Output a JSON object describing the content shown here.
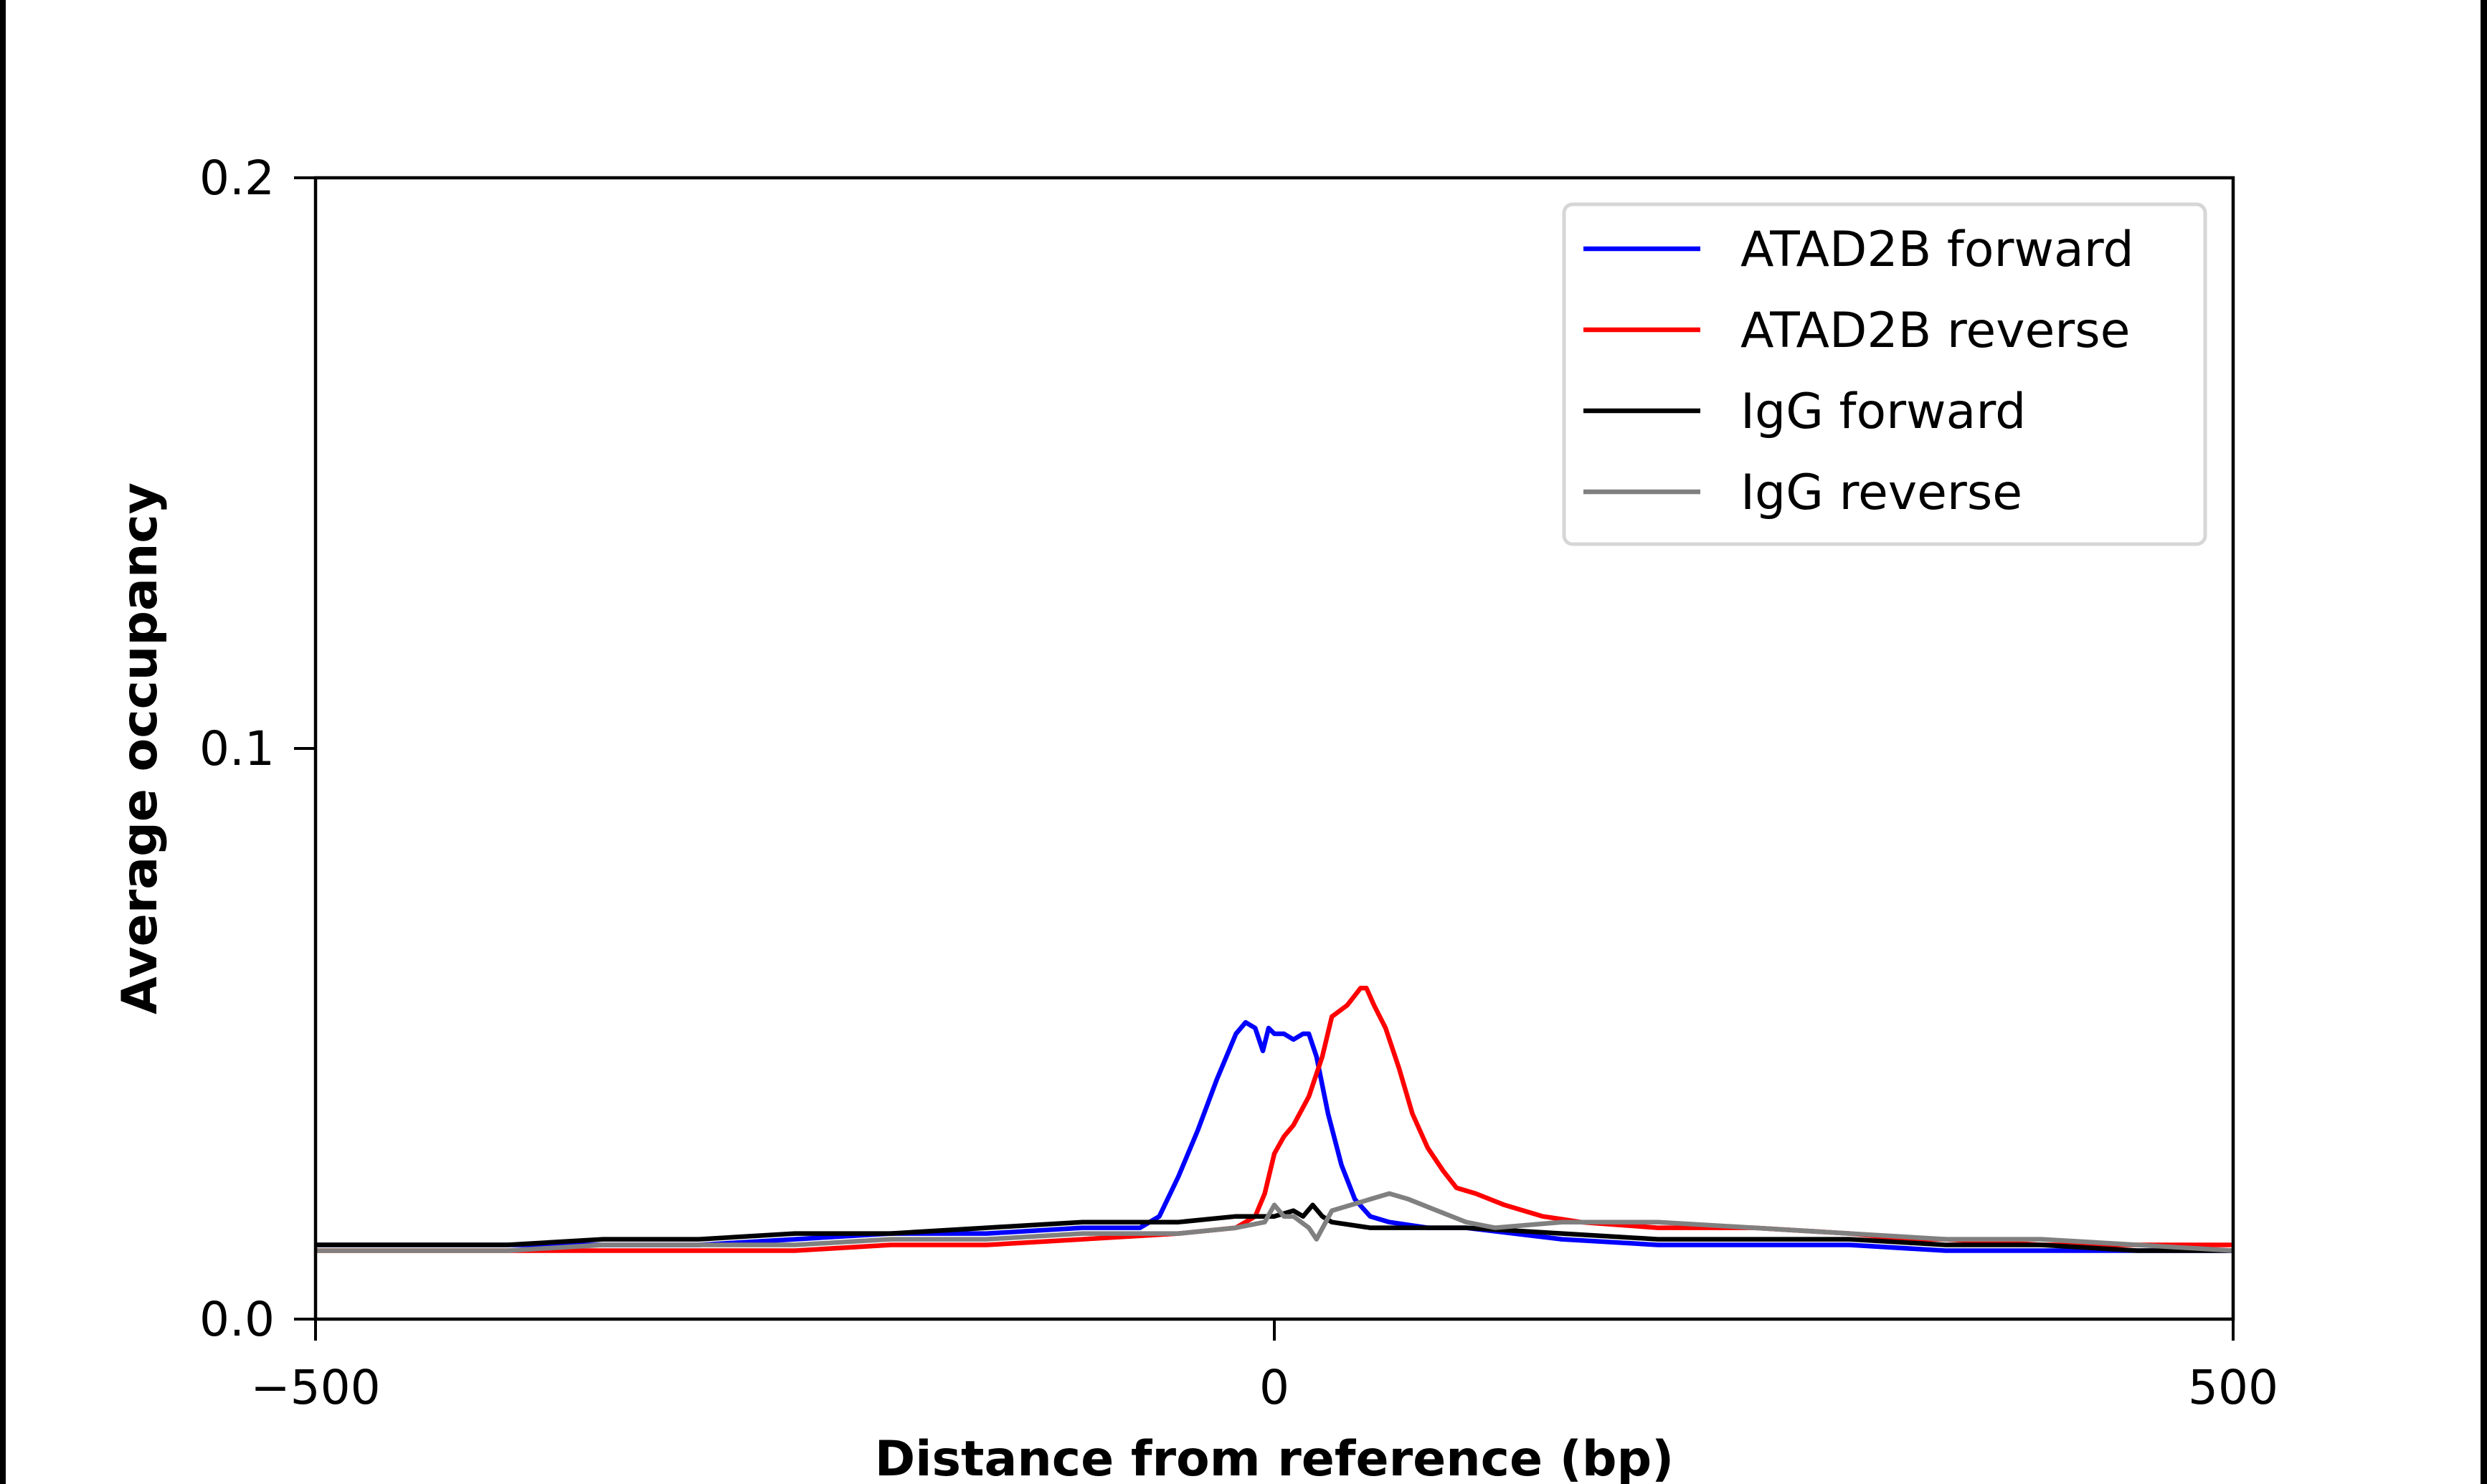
{
  "chart_data": {
    "type": "line",
    "title": "",
    "xlabel": "Distance from reference (bp)",
    "ylabel": "Average occupancy",
    "xlim": [
      -500,
      500
    ],
    "ylim": [
      0,
      0.2
    ],
    "xticks": [
      -500,
      0,
      500
    ],
    "xtick_labels": [
      "−500",
      "0",
      "500"
    ],
    "yticks": [
      0,
      0.1,
      0.2
    ],
    "ytick_labels": [
      "0.0",
      "0.1",
      "0.2"
    ],
    "grid": false,
    "legend_position": "top-right",
    "series": [
      {
        "name": "ATAD2B forward",
        "color": "#0000ff",
        "points": [
          [
            -500,
            0.013
          ],
          [
            -450,
            0.013
          ],
          [
            -400,
            0.013
          ],
          [
            -350,
            0.013
          ],
          [
            -300,
            0.013
          ],
          [
            -250,
            0.014
          ],
          [
            -200,
            0.015
          ],
          [
            -150,
            0.015
          ],
          [
            -100,
            0.016
          ],
          [
            -70,
            0.016
          ],
          [
            -60,
            0.018
          ],
          [
            -50,
            0.025
          ],
          [
            -40,
            0.033
          ],
          [
            -30,
            0.042
          ],
          [
            -20,
            0.05
          ],
          [
            -15,
            0.052
          ],
          [
            -10,
            0.051
          ],
          [
            -6,
            0.047
          ],
          [
            -3,
            0.051
          ],
          [
            0,
            0.05
          ],
          [
            5,
            0.05
          ],
          [
            10,
            0.049
          ],
          [
            15,
            0.05
          ],
          [
            18,
            0.05
          ],
          [
            22,
            0.046
          ],
          [
            28,
            0.036
          ],
          [
            35,
            0.027
          ],
          [
            42,
            0.021
          ],
          [
            50,
            0.018
          ],
          [
            60,
            0.017
          ],
          [
            80,
            0.016
          ],
          [
            100,
            0.016
          ],
          [
            150,
            0.014
          ],
          [
            200,
            0.013
          ],
          [
            250,
            0.013
          ],
          [
            300,
            0.013
          ],
          [
            350,
            0.012
          ],
          [
            400,
            0.012
          ],
          [
            450,
            0.012
          ],
          [
            500,
            0.012
          ]
        ]
      },
      {
        "name": "ATAD2B reverse",
        "color": "#ff0000",
        "points": [
          [
            -500,
            0.012
          ],
          [
            -450,
            0.012
          ],
          [
            -400,
            0.012
          ],
          [
            -350,
            0.012
          ],
          [
            -300,
            0.012
          ],
          [
            -250,
            0.012
          ],
          [
            -200,
            0.013
          ],
          [
            -150,
            0.013
          ],
          [
            -100,
            0.014
          ],
          [
            -50,
            0.015
          ],
          [
            -20,
            0.016
          ],
          [
            -10,
            0.018
          ],
          [
            -5,
            0.022
          ],
          [
            0,
            0.029
          ],
          [
            5,
            0.032
          ],
          [
            10,
            0.034
          ],
          [
            18,
            0.039
          ],
          [
            25,
            0.046
          ],
          [
            30,
            0.053
          ],
          [
            38,
            0.055
          ],
          [
            45,
            0.058
          ],
          [
            48,
            0.058
          ],
          [
            52,
            0.055
          ],
          [
            58,
            0.051
          ],
          [
            65,
            0.044
          ],
          [
            72,
            0.036
          ],
          [
            80,
            0.03
          ],
          [
            88,
            0.026
          ],
          [
            95,
            0.023
          ],
          [
            105,
            0.022
          ],
          [
            120,
            0.02
          ],
          [
            140,
            0.018
          ],
          [
            160,
            0.017
          ],
          [
            200,
            0.016
          ],
          [
            250,
            0.016
          ],
          [
            300,
            0.015
          ],
          [
            330,
            0.014
          ],
          [
            350,
            0.014
          ],
          [
            400,
            0.013
          ],
          [
            450,
            0.013
          ],
          [
            500,
            0.013
          ]
        ]
      },
      {
        "name": "IgG forward",
        "color": "#000000",
        "points": [
          [
            -500,
            0.013
          ],
          [
            -450,
            0.013
          ],
          [
            -400,
            0.013
          ],
          [
            -350,
            0.014
          ],
          [
            -300,
            0.014
          ],
          [
            -250,
            0.015
          ],
          [
            -200,
            0.015
          ],
          [
            -150,
            0.016
          ],
          [
            -100,
            0.017
          ],
          [
            -50,
            0.017
          ],
          [
            -20,
            0.018
          ],
          [
            0,
            0.018
          ],
          [
            10,
            0.019
          ],
          [
            15,
            0.018
          ],
          [
            20,
            0.02
          ],
          [
            25,
            0.018
          ],
          [
            30,
            0.017
          ],
          [
            50,
            0.016
          ],
          [
            100,
            0.016
          ],
          [
            150,
            0.015
          ],
          [
            200,
            0.014
          ],
          [
            250,
            0.014
          ],
          [
            300,
            0.014
          ],
          [
            350,
            0.013
          ],
          [
            400,
            0.013
          ],
          [
            450,
            0.012
          ],
          [
            500,
            0.012
          ]
        ]
      },
      {
        "name": "IgG reverse",
        "color": "#808080",
        "points": [
          [
            -500,
            0.012
          ],
          [
            -450,
            0.012
          ],
          [
            -400,
            0.012
          ],
          [
            -350,
            0.013
          ],
          [
            -300,
            0.013
          ],
          [
            -250,
            0.013
          ],
          [
            -200,
            0.014
          ],
          [
            -150,
            0.014
          ],
          [
            -100,
            0.015
          ],
          [
            -50,
            0.015
          ],
          [
            -20,
            0.016
          ],
          [
            -5,
            0.017
          ],
          [
            0,
            0.02
          ],
          [
            5,
            0.018
          ],
          [
            10,
            0.018
          ],
          [
            18,
            0.016
          ],
          [
            22,
            0.014
          ],
          [
            30,
            0.019
          ],
          [
            40,
            0.02
          ],
          [
            50,
            0.021
          ],
          [
            60,
            0.022
          ],
          [
            70,
            0.021
          ],
          [
            85,
            0.019
          ],
          [
            100,
            0.017
          ],
          [
            115,
            0.016
          ],
          [
            150,
            0.017
          ],
          [
            200,
            0.017
          ],
          [
            250,
            0.016
          ],
          [
            300,
            0.015
          ],
          [
            350,
            0.014
          ],
          [
            400,
            0.014
          ],
          [
            450,
            0.013
          ],
          [
            500,
            0.012
          ]
        ]
      }
    ]
  }
}
